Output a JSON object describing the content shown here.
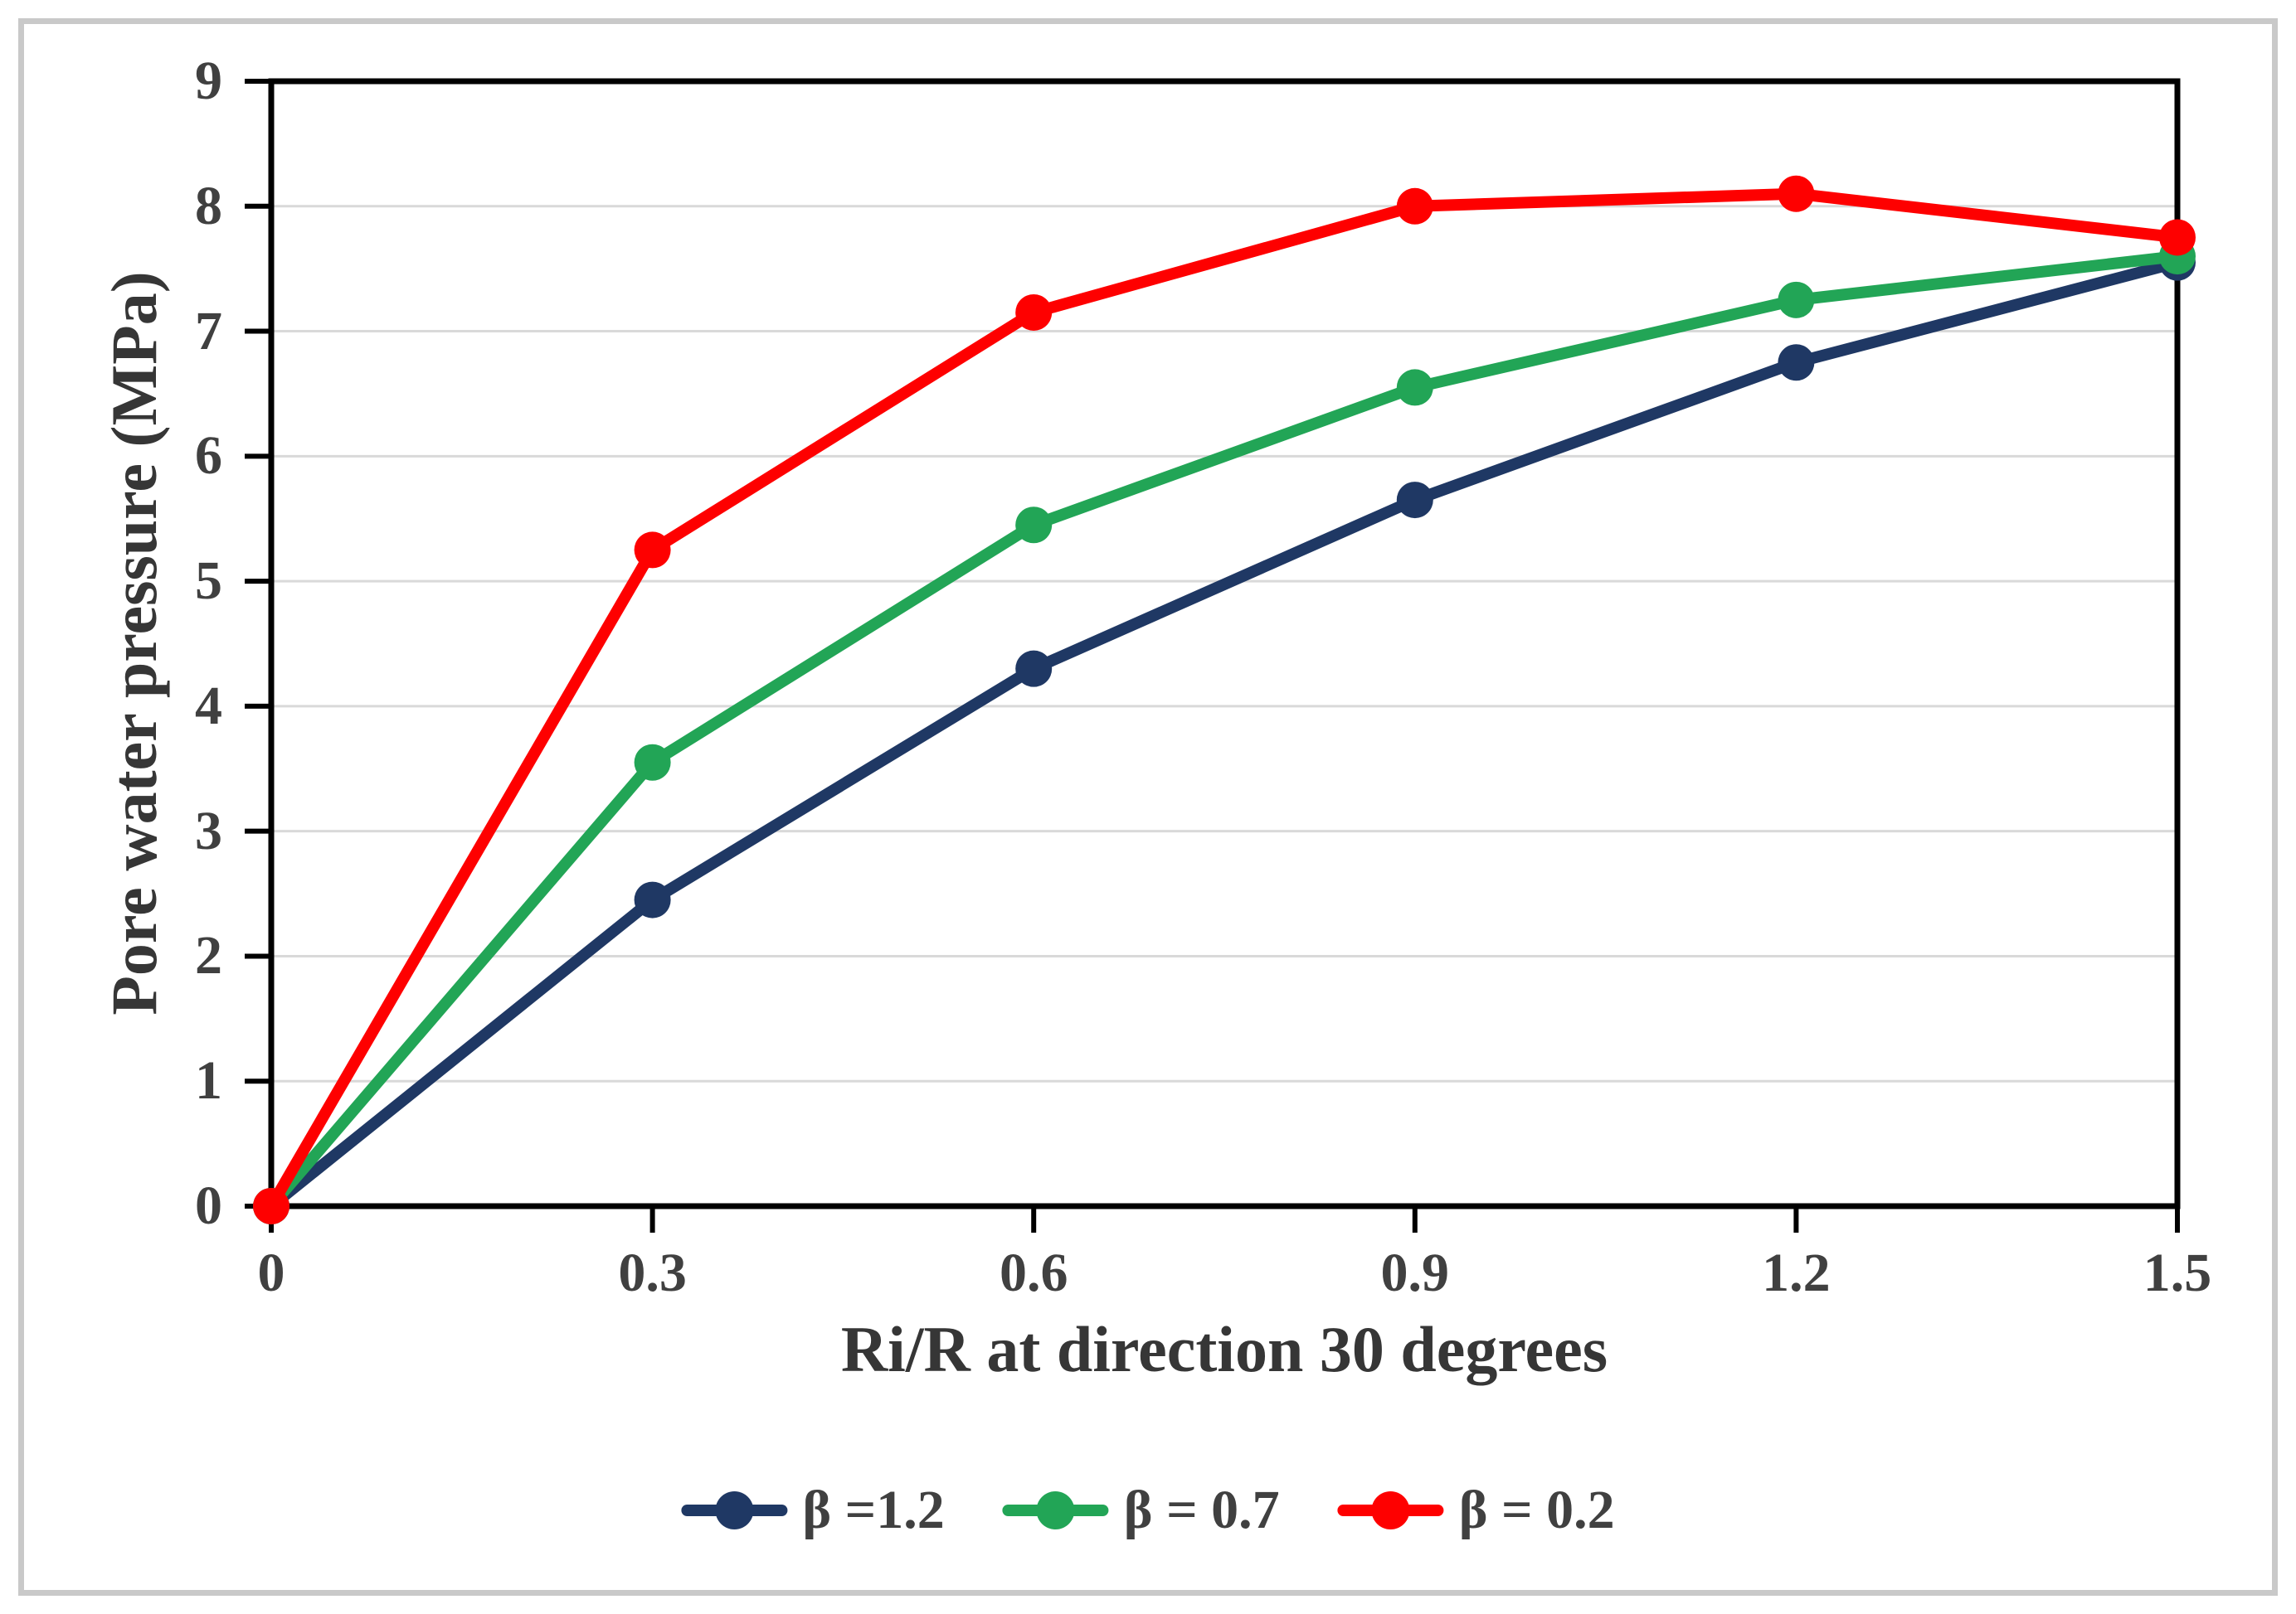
{
  "chart_data": {
    "type": "line",
    "title": "",
    "xlabel": "Ri/R at direction 30 degrees",
    "ylabel": "Pore water pressure (MPa)",
    "x": [
      0,
      0.3,
      0.6,
      0.9,
      1.2,
      1.5
    ],
    "x_tick_labels": [
      "0",
      "0.3",
      "0.6",
      "0.9",
      "1.2",
      "1.5"
    ],
    "y_ticks": [
      0,
      1,
      2,
      3,
      4,
      5,
      6,
      7,
      8,
      9
    ],
    "y_tick_labels": [
      "0",
      "1",
      "2",
      "3",
      "4",
      "5",
      "6",
      "7",
      "8",
      "9"
    ],
    "xlim": [
      0,
      1.5
    ],
    "ylim": [
      0,
      9
    ],
    "grid": "horizontal-major",
    "legend_position": "bottom-center",
    "series": [
      {
        "name": "β =1.2",
        "color": "#1f3864",
        "values": [
          0,
          2.45,
          4.3,
          5.65,
          6.75,
          7.55
        ]
      },
      {
        "name": "β = 0.7",
        "color": "#22a556",
        "values": [
          0,
          3.55,
          5.45,
          6.55,
          7.25,
          7.6
        ]
      },
      {
        "name": "β = 0.2",
        "color": "#fe0000",
        "values": [
          0,
          5.25,
          7.15,
          8.0,
          8.1,
          7.75
        ]
      }
    ],
    "colors": {
      "grid": "#d9d9d9",
      "axis": "#000000",
      "tick_label": "#404040",
      "axis_title": "#363636",
      "outer_frame": "#c9c9c9"
    }
  }
}
